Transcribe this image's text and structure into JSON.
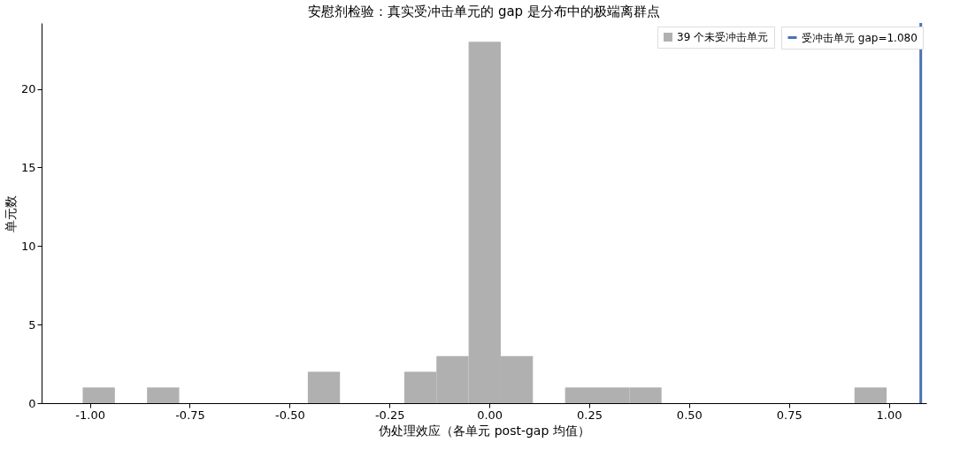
{
  "chart_data": {
    "type": "histogram",
    "title": "安慰剂检验：真实受冲击单元的 gap 是分布中的极端离群点",
    "xlabel": "伪处理效应（各单元 post-gap 均值）",
    "ylabel": "单元数",
    "bins": [
      -1.018,
      -0.9375,
      -0.857,
      -0.7765,
      -0.696,
      -0.6155,
      -0.535,
      -0.4545,
      -0.374,
      -0.2935,
      -0.213,
      -0.1325,
      -0.052,
      0.0285,
      0.109,
      0.1895,
      0.27,
      0.3505,
      0.431,
      0.5115,
      0.592,
      0.6725,
      0.753,
      0.8335,
      0.914,
      0.9945
    ],
    "series": [
      {
        "name": "39 个未受冲击单元",
        "color": "#b0b0b0",
        "values": [
          1,
          0,
          1,
          0,
          0,
          0,
          0,
          2,
          0,
          0,
          2,
          3,
          23,
          3,
          0,
          1,
          1,
          1,
          0,
          0,
          0,
          0,
          0,
          0,
          1
        ]
      }
    ],
    "ref_lines": [
      {
        "axis": "x",
        "value": 1.08,
        "label": "受冲击单元 gap=1.080",
        "color": "#4c72b0"
      }
    ],
    "xlim": [
      -1.121,
      1.094
    ],
    "ylim": [
      0,
      24.2
    ],
    "xticks": [
      {
        "value": -1,
        "label": "-1.00"
      },
      {
        "value": -0.75,
        "label": "-0.75"
      },
      {
        "value": -0.5,
        "label": "-0.50"
      },
      {
        "value": -0.25,
        "label": "-0.25"
      },
      {
        "value": 0,
        "label": "0.00"
      },
      {
        "value": 0.25,
        "label": "0.25"
      },
      {
        "value": 0.5,
        "label": "0.50"
      },
      {
        "value": 0.75,
        "label": "0.75"
      },
      {
        "value": 1,
        "label": "1.00"
      }
    ],
    "yticks": [
      0,
      5,
      10,
      15,
      20
    ],
    "legend": "top right",
    "grid": false
  }
}
